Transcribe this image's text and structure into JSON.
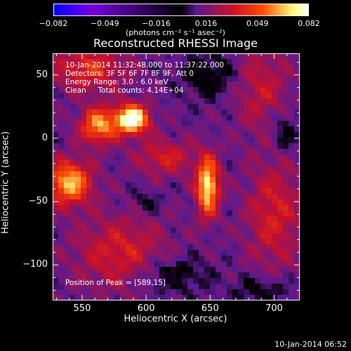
{
  "chart_data": {
    "type": "heatmap",
    "title": "Reconstructed RHESSI Image",
    "xlabel": "Heliocentric X (arcsec)",
    "ylabel": "Heliocentric Y (arcsec)",
    "xlim": [
      527,
      720
    ],
    "ylim": [
      -128,
      67
    ],
    "x_ticks": [
      "550",
      "600",
      "650",
      "700"
    ],
    "y_ticks": [
      "50",
      "0",
      "−50",
      "−100"
    ],
    "x_tick_values": [
      550,
      600,
      650,
      700
    ],
    "y_tick_values": [
      50,
      0,
      -50,
      -100
    ],
    "colorbar": {
      "range": [
        -0.082,
        0.082
      ],
      "ticks": [
        "−0.082",
        "−0.049",
        "−0.016",
        "0.016",
        "0.049",
        "0.082"
      ],
      "tick_values": [
        -0.082,
        -0.049,
        -0.016,
        0.016,
        0.049,
        0.082
      ],
      "unit_label": "(photons cm⁻² s⁻¹ asec⁻²)",
      "colors": [
        "#0000ff",
        "#7700dd",
        "#000000",
        "#5a1a90",
        "#c8102a",
        "#ff4a00",
        "#ffff80",
        "#ffffff"
      ]
    },
    "annotations": [
      "10-Jan-2014 11:32:48.000 to 11:37:22.000",
      "Detectors: 3F 5F 6F 7F 8F 9F, Att 0",
      "Energy Range: 3.0 - 6.0 keV",
      "Clean     Total counts: 4.14E+04"
    ],
    "peak_label": "Position of Peak = [589,15]",
    "sources": [
      {
        "x": 589,
        "y": 15,
        "value": 0.082,
        "sx": 9,
        "sy": 8
      },
      {
        "x": 648,
        "y": -38,
        "value": 0.07,
        "sx": 6,
        "sy": 16
      },
      {
        "x": 540,
        "y": -35,
        "value": 0.06,
        "sx": 12,
        "sy": 12
      },
      {
        "x": 563,
        "y": 10,
        "value": 0.055,
        "sx": 10,
        "sy": 10
      },
      {
        "x": 555,
        "y": 55,
        "value": 0.035,
        "sx": 20,
        "sy": 12
      },
      {
        "x": 615,
        "y": -15,
        "value": 0.03,
        "sx": 16,
        "sy": 10
      },
      {
        "x": 700,
        "y": -60,
        "value": 0.03,
        "sx": 15,
        "sy": 30
      },
      {
        "x": 580,
        "y": -90,
        "value": 0.03,
        "sx": 25,
        "sy": 20
      },
      {
        "x": 690,
        "y": 40,
        "value": 0.025,
        "sx": 15,
        "sy": 25
      }
    ],
    "negative_regions": [
      {
        "x": 650,
        "y": 50,
        "value": -0.012,
        "sx": 15,
        "sy": 12
      },
      {
        "x": 620,
        "y": -108,
        "value": -0.012,
        "sx": 18,
        "sy": 10
      },
      {
        "x": 708,
        "y": 5,
        "value": -0.01,
        "sx": 8,
        "sy": 12
      },
      {
        "x": 690,
        "y": -120,
        "value": -0.01,
        "sx": 15,
        "sy": 8
      },
      {
        "x": 600,
        "y": -50,
        "value": -0.006,
        "sx": 8,
        "sy": 6
      }
    ]
  },
  "footer": {
    "timestamp": "10-Jan-2014 06:52"
  }
}
